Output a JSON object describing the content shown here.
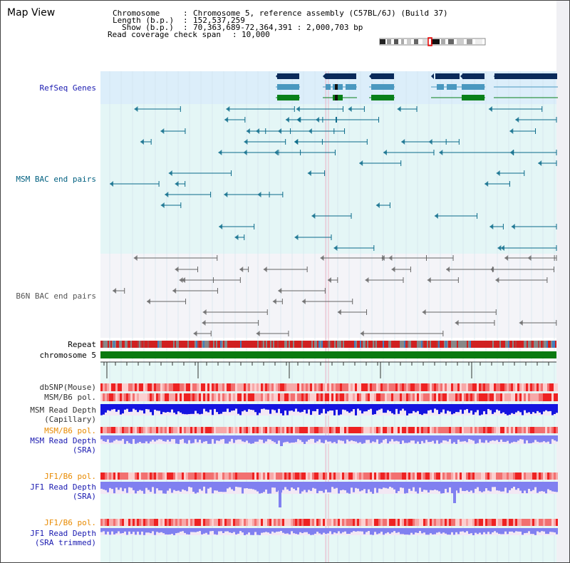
{
  "page": {
    "title": "Map View"
  },
  "info": {
    "chromosome_label": "Chromosome",
    "chromosome_value": "Chromosome 5, reference assembly (C57BL/6J) (Build 37)",
    "length_label": "Length (b.p.)",
    "length_value": "152,537,259",
    "show_label": "Show (b.p.)",
    "show_value": "70,363,689-72,364,391 : 2,000,703 bp",
    "coverage_label": "Read coverage check span",
    "coverage_value": "10,000"
  },
  "tracks": {
    "refseq": "RefSeq Genes",
    "msm_bac": "MSM BAC end pairs",
    "b6n_bac": "B6N BAC end pairs",
    "repeat": "Repeat",
    "chromosome": "chromosome 5",
    "dbsnp": "dbSNP(Mouse)",
    "msm_b6_pol": "MSM/B6 pol.",
    "msm_read_depth_cap_1": "MSM Read Depth",
    "msm_read_depth_cap_2": "(Capillary)",
    "msm_b6_pol_2": "MSM/B6 pol.",
    "msm_read_depth_sra_1": "MSM Read Depth",
    "msm_read_depth_sra_2": "(SRA)",
    "jf1_b6_pol": "JF1/B6 pol.",
    "jf1_read_depth_sra_1": "JF1 Read Depth",
    "jf1_read_depth_sra_2": "(SRA)",
    "jf1_b6_pol_2": "JF1/B6 pol.",
    "jf1_read_depth_trim_1": "JF1 Read Depth",
    "jf1_read_depth_trim_2": "(SRA trimmed)"
  },
  "axis": {
    "ticks": [
      "70400000",
      "70800000",
      "71200000",
      "71600000",
      "72000000"
    ]
  },
  "colors": {
    "refseq_bg": "#dceefa",
    "msm_bg": "#e4f6f6",
    "b6n_bg": "#f4f4f8",
    "lower_bg": "#e6f8f6",
    "gene_dark": "#0a2a5a",
    "gene_mid": "#4a98c0",
    "gene_green": "#08801a",
    "chromosome": "#0b7a10",
    "msm_pair": "#0a6a8a",
    "b6n_pair": "#666666",
    "depth_blue": "#1515e0",
    "depth_lavender": "#8080f0"
  }
}
